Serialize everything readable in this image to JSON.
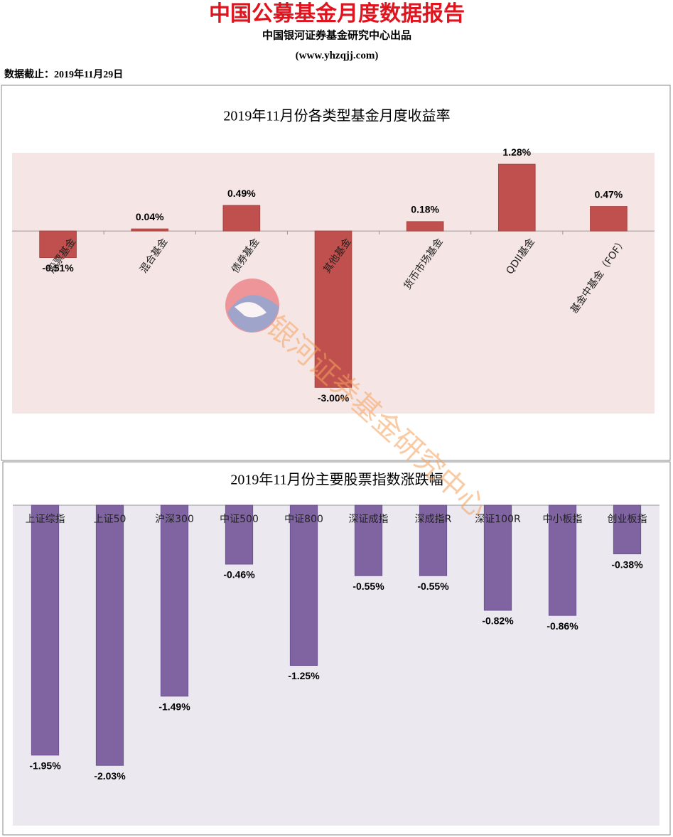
{
  "header": {
    "title": "中国公募基金月度数据报告",
    "subtitle": "中国银河证券基金研究中心出品",
    "url": "(www.yhzqjj.com)",
    "date": "数据截止：2019年11月29日"
  },
  "watermark": "银河证券基金研究中心",
  "chart_data": [
    {
      "type": "bar",
      "title": "2019年11月份各类型基金月度收益率",
      "categories": [
        "股票基金",
        "混合基金",
        "债券基金",
        "其他基金",
        "货币市场基金",
        "QDII基金",
        "基金中基金（FOF）"
      ],
      "values": [
        -0.51,
        0.04,
        0.49,
        -3.0,
        0.18,
        1.28,
        0.47
      ],
      "value_labels": [
        "-0.51%",
        "0.04%",
        "0.49%",
        "-3.00%",
        "0.18%",
        "1.28%",
        "0.47%"
      ],
      "color": "#c0504d",
      "ylim": [
        -3.5,
        1.5
      ]
    },
    {
      "type": "bar",
      "title": "2019年11月份主要股票指数涨跌幅",
      "categories": [
        "上证综指",
        "上证50",
        "沪深300",
        "中证500",
        "中证800",
        "深证成指",
        "深成指R",
        "深证100R",
        "中小板指",
        "创业板指"
      ],
      "values": [
        -1.95,
        -2.03,
        -1.49,
        -0.46,
        -1.25,
        -0.55,
        -0.55,
        -0.82,
        -0.86,
        -0.38
      ],
      "value_labels": [
        "-1.95%",
        "-2.03%",
        "-1.49%",
        "-0.46%",
        "-1.25%",
        "-0.55%",
        "-0.55%",
        "-0.82%",
        "-0.86%",
        "-0.38%"
      ],
      "color": "#8064a2",
      "ylim": [
        -2.5,
        0
      ]
    }
  ]
}
